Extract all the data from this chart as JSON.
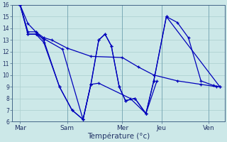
{
  "xlabel": "Température (°c)",
  "ylim": [
    6,
    16
  ],
  "xlim": [
    0,
    13.5
  ],
  "yticks": [
    6,
    7,
    8,
    9,
    10,
    11,
    12,
    13,
    14,
    15,
    16
  ],
  "xtick_labels": [
    "Mar",
    "Sam",
    "Mer",
    "Jeu",
    "Ven"
  ],
  "xtick_positions": [
    0.5,
    3.5,
    7.0,
    9.5,
    12.5
  ],
  "background_color": "#cce8e8",
  "grid_color": "#aacece",
  "line_color": "#0000bb",
  "line_width": 0.9,
  "marker_size": 2.5,
  "vlines": [
    3.5,
    7.0,
    9.5,
    12.5
  ],
  "line1_x": [
    0.5,
    1.0,
    1.5,
    2.0,
    2.5,
    3.5,
    5.0,
    7.0,
    8.0,
    9.0,
    10.5,
    12.0,
    13.0
  ],
  "line1_y": [
    16.0,
    14.4,
    13.7,
    13.2,
    13.0,
    12.3,
    11.6,
    11.5,
    10.7,
    10.0,
    9.5,
    9.2,
    9.0
  ],
  "line2_x": [
    0.5,
    1.0,
    1.5,
    2.0,
    3.0,
    3.8,
    4.5,
    5.0,
    5.5,
    5.9,
    6.3,
    6.8,
    7.2,
    7.8,
    8.5,
    9.0,
    9.8,
    10.5,
    11.2,
    12.0,
    12.8,
    13.2
  ],
  "line2_y": [
    16.0,
    13.7,
    13.7,
    13.0,
    9.0,
    7.0,
    6.2,
    9.2,
    13.0,
    13.5,
    12.5,
    9.0,
    7.8,
    8.0,
    6.7,
    9.5,
    15.0,
    14.5,
    13.2,
    9.5,
    9.1,
    9.0
  ],
  "line3_x": [
    0.5,
    1.0,
    1.5,
    2.0,
    3.0,
    3.8,
    4.5,
    5.0,
    5.5,
    7.5,
    8.5,
    9.2
  ],
  "line3_y": [
    16.0,
    13.5,
    13.5,
    12.8,
    9.0,
    7.0,
    6.2,
    9.2,
    9.3,
    8.0,
    6.7,
    9.5
  ],
  "line4_x": [
    0.5,
    1.0,
    1.5,
    3.2,
    4.5,
    5.0,
    5.5,
    5.9,
    6.3,
    6.8,
    7.2,
    7.8,
    8.5,
    9.0,
    9.8,
    13.2
  ],
  "line4_y": [
    16.0,
    13.5,
    13.5,
    12.2,
    6.2,
    9.2,
    13.0,
    13.5,
    12.5,
    9.0,
    7.8,
    8.0,
    6.7,
    9.5,
    15.0,
    9.0
  ]
}
